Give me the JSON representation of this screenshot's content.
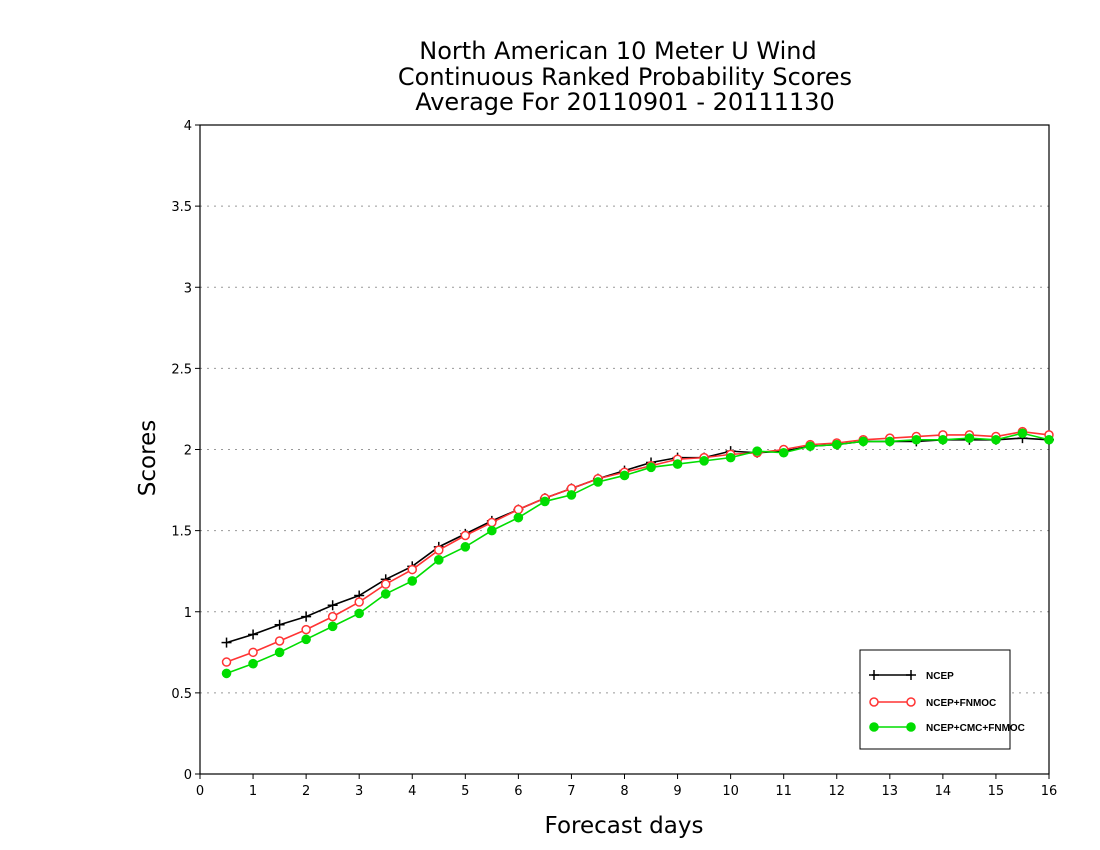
{
  "chart_data": {
    "type": "line",
    "title": [
      "North American 10 Meter U Wind",
      "Continuous Ranked Probability Scores",
      "Average For 20110901 - 20111130"
    ],
    "xlabel": "Forecast days",
    "ylabel": "Scores",
    "xlim": [
      0,
      16
    ],
    "ylim": [
      0,
      4
    ],
    "xticks": [
      0,
      1,
      2,
      3,
      4,
      5,
      6,
      7,
      8,
      9,
      10,
      11,
      12,
      13,
      14,
      15,
      16
    ],
    "yticks": [
      0,
      0.5,
      1,
      1.5,
      2,
      2.5,
      3,
      3.5,
      4
    ],
    "ytick_labels": [
      "0",
      "0.5",
      "1",
      "1.5",
      "2",
      "2.5",
      "3",
      "3.5",
      "4"
    ],
    "grid": "horizontal dotted",
    "legend_position": "bottom-right",
    "x": [
      0.5,
      1,
      1.5,
      2,
      2.5,
      3,
      3.5,
      4,
      4.5,
      5,
      5.5,
      6,
      6.5,
      7,
      7.5,
      8,
      8.5,
      9,
      9.5,
      10,
      10.5,
      11,
      11.5,
      12,
      12.5,
      13,
      13.5,
      14,
      14.5,
      15,
      15.5,
      16
    ],
    "series": [
      {
        "name": "NCEP",
        "color": "#000000",
        "marker": "plus",
        "values": [
          0.81,
          0.86,
          0.92,
          0.97,
          1.04,
          1.1,
          1.2,
          1.28,
          1.4,
          1.48,
          1.56,
          1.63,
          1.7,
          1.76,
          1.82,
          1.87,
          1.92,
          1.95,
          1.95,
          1.99,
          1.98,
          1.99,
          2.02,
          2.03,
          2.05,
          2.05,
          2.05,
          2.06,
          2.06,
          2.06,
          2.07,
          2.06
        ]
      },
      {
        "name": "NCEP+FNMOC",
        "color": "#ff3333",
        "marker": "open-circle",
        "values": [
          0.69,
          0.75,
          0.82,
          0.89,
          0.97,
          1.06,
          1.17,
          1.26,
          1.38,
          1.47,
          1.55,
          1.63,
          1.7,
          1.76,
          1.82,
          1.86,
          1.9,
          1.94,
          1.95,
          1.97,
          1.98,
          2.0,
          2.03,
          2.04,
          2.06,
          2.07,
          2.08,
          2.09,
          2.09,
          2.08,
          2.11,
          2.09
        ]
      },
      {
        "name": "NCEP+CMC+FNMOC",
        "color": "#00dd00",
        "marker": "filled-circle",
        "values": [
          0.62,
          0.68,
          0.75,
          0.83,
          0.91,
          0.99,
          1.11,
          1.19,
          1.32,
          1.4,
          1.5,
          1.58,
          1.68,
          1.72,
          1.8,
          1.84,
          1.89,
          1.91,
          1.93,
          1.95,
          1.99,
          1.98,
          2.02,
          2.03,
          2.05,
          2.05,
          2.06,
          2.06,
          2.07,
          2.06,
          2.1,
          2.06
        ]
      }
    ]
  }
}
